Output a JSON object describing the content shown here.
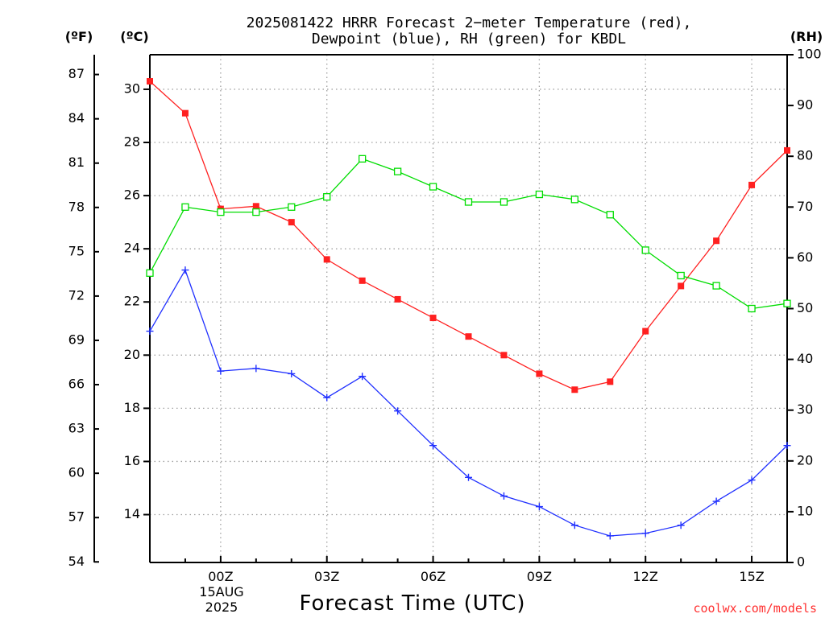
{
  "title_line1": "2025081422 HRRR Forecast 2−meter Temperature (red),",
  "title_line2": "Dewpoint (blue), RH (green) for KBDL",
  "unit_f": "(ºF)",
  "unit_c": "(ºC)",
  "unit_rh": "(RH)",
  "xlabel": "Forecast Time (UTC)",
  "date_line1": "15AUG",
  "date_line2": "2025",
  "credit": "coolwx.com/models",
  "colors": {
    "temperature": "#ff2020",
    "dewpoint": "#2030ff",
    "rh": "#00dd00",
    "grid": "#a0a0a0",
    "axis": "#000000"
  },
  "chart_data": {
    "type": "line",
    "title": "2025081422 HRRR Forecast 2-meter Temperature (red), Dewpoint (blue), RH (green) for KBDL",
    "xlabel": "Forecast Time (UTC)",
    "x": [
      "22Z",
      "23Z",
      "00Z",
      "01Z",
      "02Z",
      "03Z",
      "04Z",
      "05Z",
      "06Z",
      "07Z",
      "08Z",
      "09Z",
      "10Z",
      "11Z",
      "12Z",
      "13Z",
      "14Z",
      "15Z",
      "16Z"
    ],
    "xticks": [
      "00Z",
      "03Z",
      "06Z",
      "09Z",
      "12Z",
      "15Z"
    ],
    "xtick_index": [
      2,
      5,
      8,
      11,
      14,
      17
    ],
    "grid": true,
    "y_celsius": {
      "ticks": [
        14,
        16,
        18,
        20,
        22,
        24,
        26,
        28,
        30
      ],
      "ylim": [
        12.2,
        31.3
      ]
    },
    "y_fahrenheit": {
      "ticks": [
        54,
        57,
        60,
        63,
        66,
        69,
        72,
        75,
        78,
        81,
        84,
        87
      ]
    },
    "y_rh": {
      "ticks": [
        0,
        10,
        20,
        30,
        40,
        50,
        60,
        70,
        80,
        90,
        100
      ],
      "ylim": [
        0,
        100
      ]
    },
    "series": [
      {
        "name": "Temperature",
        "axis": "C",
        "marker": "filled-square",
        "values": [
          30.3,
          29.1,
          25.5,
          25.6,
          25.0,
          23.6,
          22.8,
          22.1,
          21.4,
          20.7,
          20.0,
          19.3,
          18.7,
          19.0,
          20.9,
          22.6,
          24.3,
          26.4,
          27.7
        ]
      },
      {
        "name": "Dewpoint",
        "axis": "C",
        "marker": "plus",
        "values": [
          20.9,
          23.2,
          19.4,
          19.5,
          19.3,
          18.4,
          19.2,
          17.9,
          16.6,
          15.4,
          14.7,
          14.3,
          13.6,
          13.2,
          13.3,
          13.6,
          14.5,
          15.3,
          16.6
        ]
      },
      {
        "name": "RH",
        "axis": "RH",
        "marker": "open-square",
        "values": [
          57,
          70,
          69,
          69,
          70,
          72,
          79.5,
          77,
          74,
          71,
          71,
          72.5,
          71.5,
          68.5,
          61.5,
          56.5,
          54.5,
          50,
          51
        ]
      }
    ]
  }
}
